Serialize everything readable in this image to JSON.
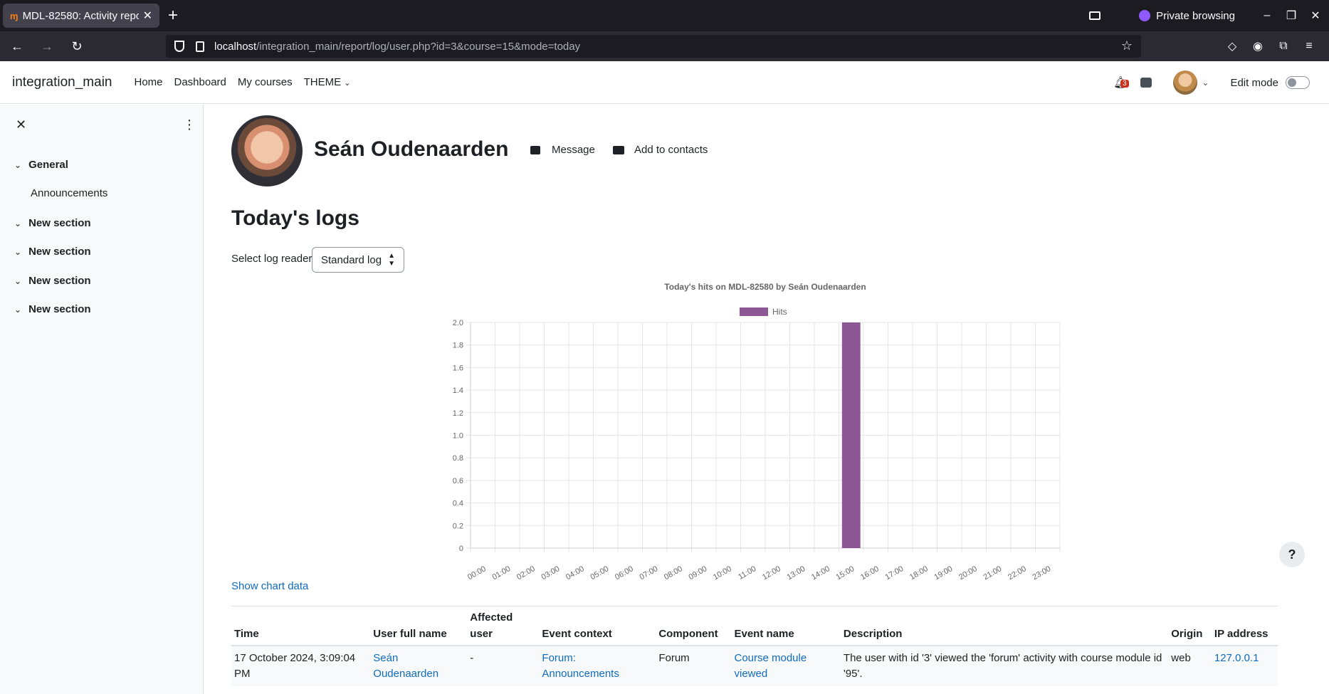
{
  "browser": {
    "tab_title": "MDL-82580: Activity repo",
    "tab_favicon": "moodle-favicon",
    "private_label": "Private browsing",
    "url_host": "localhost",
    "url_path": "/integration_main/report/log/user.php?id=3&course=15&mode=today"
  },
  "header": {
    "brand": "integration_main",
    "nav": [
      "Home",
      "Dashboard",
      "My courses",
      "THEME"
    ],
    "notification_count": "3",
    "edit_mode_label": "Edit mode"
  },
  "sidebar": {
    "sections": [
      {
        "label": "General",
        "items": [
          "Announcements"
        ]
      },
      {
        "label": "New section",
        "items": []
      },
      {
        "label": "New section",
        "items": []
      },
      {
        "label": "New section",
        "items": []
      },
      {
        "label": "New section",
        "items": []
      }
    ]
  },
  "profile": {
    "name": "Seán Oudenaarden",
    "message_label": "Message",
    "contacts_label": "Add to contacts"
  },
  "page": {
    "title": "Today's logs",
    "reader_label": "Select log reader",
    "reader_value": "Standard log",
    "show_chart_data": "Show chart data"
  },
  "chart_data": {
    "type": "bar",
    "title": "Today's hits on MDL-82580 by Seán Oudenaarden",
    "legend": "Hits",
    "categories": [
      "00:00",
      "01:00",
      "02:00",
      "03:00",
      "04:00",
      "05:00",
      "06:00",
      "07:00",
      "08:00",
      "09:00",
      "10:00",
      "11:00",
      "12:00",
      "13:00",
      "14:00",
      "15:00",
      "16:00",
      "17:00",
      "18:00",
      "19:00",
      "20:00",
      "21:00",
      "22:00",
      "23:00"
    ],
    "values": [
      0,
      0,
      0,
      0,
      0,
      0,
      0,
      0,
      0,
      0,
      0,
      0,
      0,
      0,
      0,
      2,
      0,
      0,
      0,
      0,
      0,
      0,
      0,
      0
    ],
    "ylim": [
      0,
      2.0
    ],
    "yticks": [
      "0",
      "0.2",
      "0.4",
      "0.6",
      "0.8",
      "1.0",
      "1.2",
      "1.4",
      "1.6",
      "1.8",
      "2.0"
    ],
    "color": "#8c5794",
    "grid": true,
    "legend_position": "top"
  },
  "table": {
    "headers": [
      "Time",
      "User full name",
      "Affected user",
      "Event context",
      "Component",
      "Event name",
      "Description",
      "Origin",
      "IP address"
    ],
    "rows": [
      {
        "time": "17 October 2024, 3:09:04 PM",
        "user": "Seán Oudenaarden",
        "affected": "-",
        "context": "Forum: Announcements",
        "component": "Forum",
        "event": "Course module viewed",
        "description": "The user with id '3' viewed the 'forum' activity with course module id '95'.",
        "origin": "web",
        "ip": "127.0.0.1"
      }
    ]
  },
  "help_label": "?"
}
